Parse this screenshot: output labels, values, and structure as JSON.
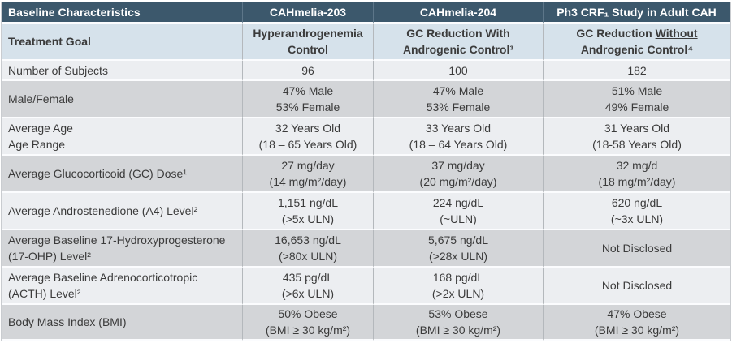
{
  "colors": {
    "header_bg": "#3c586c",
    "header_text": "#ffffff",
    "goal_row_bg": "#d6e2eb",
    "row_light_bg": "#eceef1",
    "row_dark_bg": "#d3d5d8",
    "body_text": "#3b3b3b"
  },
  "header": {
    "col_label": "Baseline Characteristics",
    "col_study1": "CAHmelia-203",
    "col_study2": "CAHmelia-204",
    "col_study3": "Ph3 CRF₁ Study in Adult CAH"
  },
  "treatment_goal": {
    "label": "Treatment Goal",
    "study1": [
      "Hyperandrogenemia",
      "Control"
    ],
    "study2": [
      "GC Reduction With",
      "Androgenic Control³"
    ],
    "study3_line1_pre": "GC Reduction ",
    "study3_line1_underlined": "Without",
    "study3_line2": "Androgenic Control⁴"
  },
  "rows": [
    {
      "label": "Number of Subjects",
      "study1": "96",
      "study2": "100",
      "study3": "182"
    },
    {
      "label": "Male/Female",
      "study1": [
        "47% Male",
        "53% Female"
      ],
      "study2": [
        "47% Male",
        "53% Female"
      ],
      "study3": [
        "51% Male",
        "49% Female"
      ]
    },
    {
      "label": [
        "Average Age",
        "Age Range"
      ],
      "study1": [
        "32 Years Old",
        "(18 – 65 Years Old)"
      ],
      "study2": [
        "33 Years Old",
        "(18 – 64 Years Old)"
      ],
      "study3": [
        "31 Years Old",
        "(18-58 Years Old)"
      ]
    },
    {
      "label": "Average Glucocorticoid (GC) Dose¹",
      "study1": [
        "27 mg/day",
        "(14 mg/m²/day)"
      ],
      "study2": [
        "37 mg/day",
        "(20 mg/m²/day)"
      ],
      "study3": [
        "32 mg/d",
        "(18 mg/m²/day)"
      ]
    },
    {
      "label": "Average Androstenedione (A4) Level²",
      "study1": [
        "1,151 ng/dL",
        "(>5x ULN)"
      ],
      "study2": [
        "224 ng/dL",
        "(~ULN)"
      ],
      "study3": [
        "620 ng/dL",
        "(~3x ULN)"
      ]
    },
    {
      "label": [
        "Average Baseline 17-Hydroxyprogesterone",
        "(17-OHP) Level²"
      ],
      "study1": [
        "16,653 ng/dL",
        "(>80x ULN)"
      ],
      "study2": [
        "5,675 ng/dL",
        "(>28x ULN)"
      ],
      "study3": "Not Disclosed"
    },
    {
      "label": [
        "Average Baseline Adrenocorticotropic",
        "(ACTH) Level²"
      ],
      "study1": [
        "435 pg/dL",
        "(>6x ULN)"
      ],
      "study2": [
        "168 pg/dL",
        "(>2x ULN)"
      ],
      "study3": "Not Disclosed"
    },
    {
      "label": "Body Mass Index (BMI)",
      "study1": [
        "50% Obese",
        "(BMI ≥ 30 kg/m²)"
      ],
      "study2": [
        "53% Obese",
        "(BMI ≥ 30 kg/m²)"
      ],
      "study3": [
        "47% Obese",
        "(BMI ≥ 30 kg/m²)"
      ]
    }
  ]
}
